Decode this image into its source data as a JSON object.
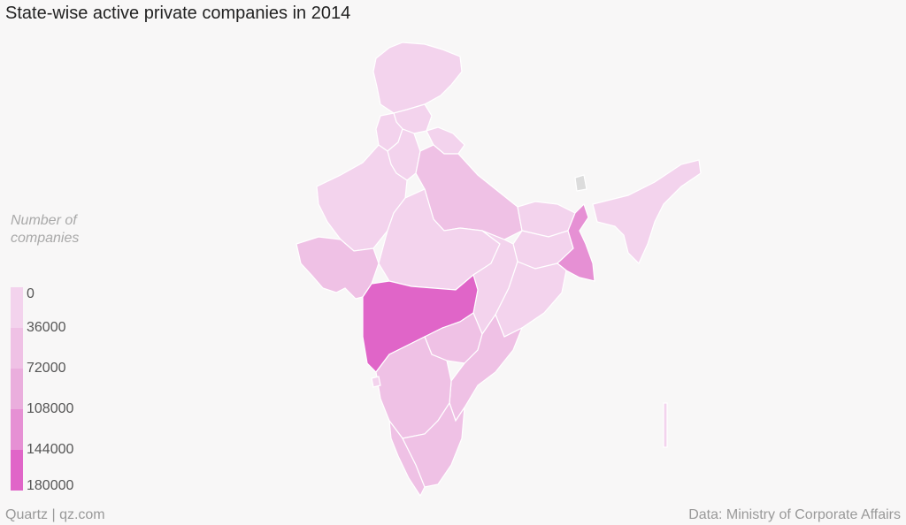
{
  "title": "State-wise active private companies in 2014",
  "legend": {
    "title_line1": "Number of",
    "title_line2": "companies",
    "labels": [
      "0",
      "36000",
      "72000",
      "108000",
      "144000",
      "180000"
    ],
    "colors": [
      "#f3d3ed",
      "#efc1e5",
      "#eaaedd",
      "#e690d4",
      "#e065c8",
      "#dc3dbd"
    ]
  },
  "colors": {
    "no_data": "#dcdcdc",
    "border": "#ffffff",
    "background": "#f8f7f7"
  },
  "regions": [
    {
      "name": "Jammu and Kashmir",
      "bin": 0
    },
    {
      "name": "Himachal Pradesh",
      "bin": 0
    },
    {
      "name": "Punjab",
      "bin": 0
    },
    {
      "name": "Uttarakhand",
      "bin": 0
    },
    {
      "name": "Haryana",
      "bin": 0
    },
    {
      "name": "Delhi",
      "bin": 5
    },
    {
      "name": "Rajasthan",
      "bin": 0
    },
    {
      "name": "Uttar Pradesh",
      "bin": 1
    },
    {
      "name": "Gujarat",
      "bin": 1
    },
    {
      "name": "Madhya Pradesh",
      "bin": 0
    },
    {
      "name": "Bihar",
      "bin": 0
    },
    {
      "name": "Jharkhand",
      "bin": 0
    },
    {
      "name": "West Bengal",
      "bin": 3
    },
    {
      "name": "Chhattisgarh",
      "bin": 0
    },
    {
      "name": "Odisha",
      "bin": 0
    },
    {
      "name": "Maharashtra",
      "bin": 4
    },
    {
      "name": "Telangana",
      "bin": 1
    },
    {
      "name": "Andhra Pradesh",
      "bin": 1
    },
    {
      "name": "Karnataka",
      "bin": 1
    },
    {
      "name": "Goa",
      "bin": 0
    },
    {
      "name": "Kerala",
      "bin": 1
    },
    {
      "name": "Tamil Nadu",
      "bin": 1
    },
    {
      "name": "Sikkim",
      "bin": -1
    },
    {
      "name": "Northeast states",
      "bin": 0
    },
    {
      "name": "Andaman and Nicobar Islands",
      "bin": 0
    }
  ],
  "footer": {
    "source_left": "Quartz | qz.com",
    "source_right": "Data: Ministry of Corporate Affairs"
  }
}
